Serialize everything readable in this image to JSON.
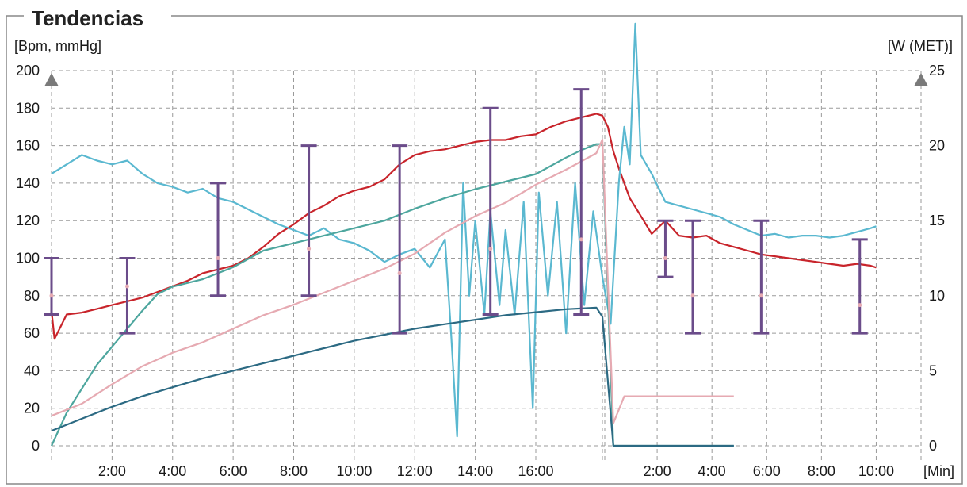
{
  "chart_data": {
    "type": "line",
    "title": "Tendencias",
    "ylabel_left": "[Bpm, mmHg]",
    "ylabel_right": "[W (MET)]",
    "xlabel": "[Min]",
    "ylim_left": [
      0,
      200
    ],
    "ylim_right": [
      0,
      25
    ],
    "yticks_left": [
      "0",
      "20",
      "40",
      "60",
      "80",
      "100",
      "120",
      "140",
      "160",
      "180",
      "200"
    ],
    "yticks_right": [
      "0",
      "5",
      "10",
      "15",
      "20",
      "25"
    ],
    "xticks_exercise": [
      "2:00",
      "4:00",
      "6:00",
      "8:00",
      "10:00",
      "12:00",
      "14:00",
      "16:00"
    ],
    "xticks_recovery": [
      "2:00",
      "4:00",
      "6:00",
      "8:00",
      "10:00"
    ],
    "exercise_end_min": 18.2,
    "recovery_end_min": 11.0,
    "grid": true,
    "series": [
      {
        "color": "#c8242b",
        "axis": "left",
        "points": [
          [
            0,
            72
          ],
          [
            0.1,
            57
          ],
          [
            0.5,
            70
          ],
          [
            1,
            71
          ],
          [
            1.5,
            73
          ],
          [
            2,
            75
          ],
          [
            2.5,
            77
          ],
          [
            3,
            79
          ],
          [
            3.5,
            82
          ],
          [
            4,
            85
          ],
          [
            4.5,
            88
          ],
          [
            5,
            92
          ],
          [
            5.5,
            94
          ],
          [
            6,
            96
          ],
          [
            6.5,
            100
          ],
          [
            7,
            106
          ],
          [
            7.5,
            113
          ],
          [
            8,
            118
          ],
          [
            8.5,
            124
          ],
          [
            9,
            128
          ],
          [
            9.5,
            133
          ],
          [
            10,
            136
          ],
          [
            10.5,
            138
          ],
          [
            11,
            142
          ],
          [
            11.5,
            150
          ],
          [
            12,
            155
          ],
          [
            12.5,
            157
          ],
          [
            13,
            158
          ],
          [
            13.5,
            160
          ],
          [
            14,
            162
          ],
          [
            14.5,
            163
          ],
          [
            15,
            163
          ],
          [
            15.5,
            165
          ],
          [
            16,
            166
          ],
          [
            16.5,
            170
          ],
          [
            17,
            173
          ],
          [
            17.5,
            175
          ],
          [
            18,
            177
          ],
          [
            18.2,
            176
          ],
          [
            18.4,
            170
          ],
          [
            18.6,
            157
          ],
          [
            18.8,
            148
          ],
          [
            19,
            140
          ],
          [
            19.2,
            132
          ],
          [
            19.5,
            125
          ],
          [
            20,
            113
          ],
          [
            20.5,
            120
          ],
          [
            21,
            112
          ],
          [
            21.5,
            111
          ],
          [
            22,
            112
          ],
          [
            22.5,
            108
          ],
          [
            23,
            106
          ],
          [
            23.5,
            104
          ],
          [
            24,
            102
          ],
          [
            24.5,
            101
          ],
          [
            25,
            100
          ],
          [
            25.5,
            99
          ],
          [
            26,
            98
          ],
          [
            26.5,
            97
          ],
          [
            27,
            96
          ],
          [
            27.5,
            97
          ],
          [
            28,
            96
          ],
          [
            28.2,
            95
          ]
        ]
      },
      {
        "color": "#5ab8d0",
        "axis": "left",
        "points": [
          [
            0,
            145
          ],
          [
            0.5,
            150
          ],
          [
            1,
            155
          ],
          [
            1.5,
            152
          ],
          [
            2,
            150
          ],
          [
            2.5,
            152
          ],
          [
            3,
            145
          ],
          [
            3.5,
            140
          ],
          [
            4,
            138
          ],
          [
            4.5,
            135
          ],
          [
            5,
            137
          ],
          [
            5.5,
            132
          ],
          [
            6,
            130
          ],
          [
            6.5,
            126
          ],
          [
            7,
            122
          ],
          [
            7.5,
            118
          ],
          [
            8,
            115
          ],
          [
            8.5,
            112
          ],
          [
            9,
            116
          ],
          [
            9.5,
            110
          ],
          [
            10,
            108
          ],
          [
            10.5,
            104
          ],
          [
            11,
            98
          ],
          [
            11.5,
            102
          ],
          [
            12,
            105
          ],
          [
            12.5,
            95
          ],
          [
            13,
            110
          ],
          [
            13.2,
            60
          ],
          [
            13.4,
            5
          ],
          [
            13.6,
            140
          ],
          [
            13.8,
            80
          ],
          [
            14,
            120
          ],
          [
            14.3,
            70
          ],
          [
            14.5,
            125
          ],
          [
            14.8,
            75
          ],
          [
            15,
            115
          ],
          [
            15.3,
            70
          ],
          [
            15.6,
            130
          ],
          [
            15.9,
            20
          ],
          [
            16.1,
            135
          ],
          [
            16.4,
            80
          ],
          [
            16.7,
            130
          ],
          [
            17,
            60
          ],
          [
            17.3,
            140
          ],
          [
            17.6,
            75
          ],
          [
            17.9,
            125
          ],
          [
            18.2,
            90
          ],
          [
            18.5,
            65
          ],
          [
            18.8,
            140
          ],
          [
            19,
            170
          ],
          [
            19.2,
            150
          ],
          [
            19.4,
            225
          ],
          [
            19.6,
            155
          ],
          [
            19.8,
            150
          ],
          [
            20,
            145
          ],
          [
            20.5,
            130
          ],
          [
            21,
            128
          ],
          [
            21.5,
            126
          ],
          [
            22,
            124
          ],
          [
            22.5,
            122
          ],
          [
            23,
            118
          ],
          [
            23.5,
            115
          ],
          [
            24,
            112
          ],
          [
            24.5,
            113
          ],
          [
            25,
            111
          ],
          [
            25.5,
            112
          ],
          [
            26,
            112
          ],
          [
            26.5,
            111
          ],
          [
            27,
            112
          ],
          [
            27.5,
            114
          ],
          [
            28,
            116
          ],
          [
            28.2,
            117
          ]
        ]
      },
      {
        "color": "#4da69e",
        "axis": "right",
        "points": [
          [
            0,
            0
          ],
          [
            0.5,
            2.2
          ],
          [
            1,
            3.8
          ],
          [
            1.5,
            5.4
          ],
          [
            2,
            6.6
          ],
          [
            2.5,
            7.8
          ],
          [
            3,
            9.0
          ],
          [
            3.5,
            10.1
          ],
          [
            4,
            10.6
          ],
          [
            5,
            11.1
          ],
          [
            6,
            11.9
          ],
          [
            7,
            13.0
          ],
          [
            8,
            13.5
          ],
          [
            9,
            14.0
          ],
          [
            10,
            14.5
          ],
          [
            11,
            15.0
          ],
          [
            12,
            15.8
          ],
          [
            13,
            16.5
          ],
          [
            14,
            17.1
          ],
          [
            15,
            17.6
          ],
          [
            16,
            18.1
          ],
          [
            17,
            19.2
          ],
          [
            17.5,
            19.7
          ],
          [
            18,
            20.1
          ],
          [
            18.2,
            20.1
          ],
          [
            18.6,
            0
          ],
          [
            22,
            0
          ],
          [
            23,
            0
          ]
        ]
      },
      {
        "color": "#e6aab2",
        "axis": "right",
        "points": [
          [
            0,
            2.0
          ],
          [
            1,
            2.8
          ],
          [
            2,
            4.1
          ],
          [
            3,
            5.3
          ],
          [
            4,
            6.2
          ],
          [
            5,
            6.9
          ],
          [
            6,
            7.8
          ],
          [
            7,
            8.7
          ],
          [
            8,
            9.4
          ],
          [
            9,
            10.2
          ],
          [
            10,
            11.0
          ],
          [
            11,
            11.8
          ],
          [
            12,
            12.8
          ],
          [
            13,
            14.2
          ],
          [
            14,
            15.3
          ],
          [
            15,
            16.2
          ],
          [
            16,
            17.4
          ],
          [
            17,
            18.4
          ],
          [
            18,
            19.5
          ],
          [
            18.2,
            20.4
          ],
          [
            18.6,
            1.5
          ],
          [
            19,
            3.3
          ],
          [
            20,
            3.3
          ],
          [
            22,
            3.3
          ],
          [
            23,
            3.3
          ]
        ]
      },
      {
        "color": "#2c6a83",
        "axis": "right",
        "points": [
          [
            0,
            1.0
          ],
          [
            1,
            1.8
          ],
          [
            2,
            2.6
          ],
          [
            3,
            3.3
          ],
          [
            4,
            3.9
          ],
          [
            5,
            4.5
          ],
          [
            6,
            5.0
          ],
          [
            7,
            5.5
          ],
          [
            8,
            6.0
          ],
          [
            9,
            6.5
          ],
          [
            10,
            7.0
          ],
          [
            11,
            7.4
          ],
          [
            12,
            7.8
          ],
          [
            13,
            8.1
          ],
          [
            14,
            8.4
          ],
          [
            15,
            8.7
          ],
          [
            16,
            8.9
          ],
          [
            17,
            9.1
          ],
          [
            18,
            9.2
          ],
          [
            18.2,
            8.6
          ],
          [
            18.6,
            0
          ],
          [
            19,
            0
          ],
          [
            19.6,
            0
          ],
          [
            22,
            0
          ],
          [
            23,
            0
          ]
        ]
      }
    ],
    "blood_pressure": [
      {
        "t": 0,
        "sys": 100,
        "dia": 70,
        "mid": 80
      },
      {
        "t": 2.5,
        "sys": 100,
        "dia": 60,
        "mid": 85
      },
      {
        "t": 5.5,
        "sys": 140,
        "dia": 80,
        "mid": 100
      },
      {
        "t": 8.5,
        "sys": 160,
        "dia": 80,
        "mid": 105
      },
      {
        "t": 11.5,
        "sys": 160,
        "dia": 60,
        "mid": 92
      },
      {
        "t": 14.5,
        "sys": 180,
        "dia": 70,
        "mid": 105
      },
      {
        "t": 17.5,
        "sys": 190,
        "dia": 70,
        "mid": 110
      },
      {
        "t": 20.5,
        "sys": 120,
        "dia": 90,
        "mid": 100
      },
      {
        "t": 21.5,
        "sys": 120,
        "dia": 60,
        "mid": 80
      },
      {
        "t": 24,
        "sys": 120,
        "dia": 60,
        "mid": 80
      },
      {
        "t": 27.6,
        "sys": 110,
        "dia": 60,
        "mid": 75
      }
    ],
    "bp_color": "#6b4c8a"
  }
}
